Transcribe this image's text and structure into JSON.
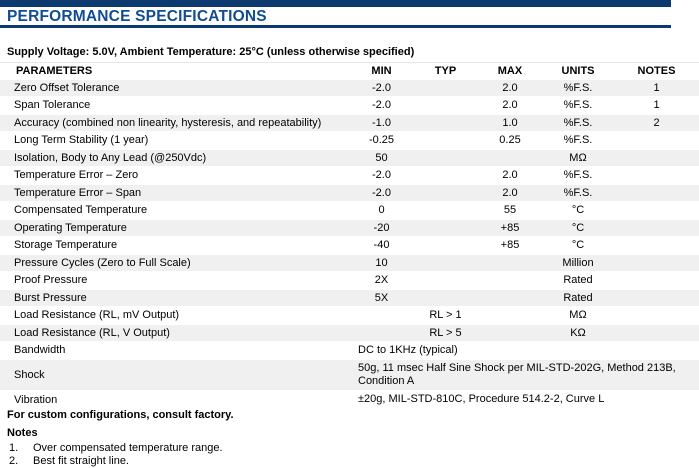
{
  "header": {
    "title": "PERFORMANCE SPECIFICATIONS"
  },
  "subtitle": "Supply Voltage: 5.0V, Ambient Temperature: 25°C (unless otherwise specified)",
  "table": {
    "columns": {
      "parameters": "PARAMETERS",
      "min": "MIN",
      "typ": "TYP",
      "max": "MAX",
      "units": "UNITS",
      "notes": "NOTES"
    },
    "rows": [
      {
        "parameter": "Zero Offset Tolerance",
        "min": "-2.0",
        "typ": "",
        "max": "2.0",
        "units": "%F.S.",
        "notes": "1"
      },
      {
        "parameter": "Span Tolerance",
        "min": "-2.0",
        "typ": "",
        "max": "2.0",
        "units": "%F.S.",
        "notes": "1"
      },
      {
        "parameter": "Accuracy (combined non linearity, hysteresis, and repeatability)",
        "min": "-1.0",
        "typ": "",
        "max": "1.0",
        "units": "%F.S.",
        "notes": "2"
      },
      {
        "parameter": "Long Term Stability (1 year)",
        "min": "-0.25",
        "typ": "",
        "max": "0.25",
        "units": "%F.S.",
        "notes": ""
      },
      {
        "parameter": "Isolation, Body to Any Lead (@250Vdc)",
        "min": "50",
        "typ": "",
        "max": "",
        "units": "MΩ",
        "notes": ""
      },
      {
        "parameter": "Temperature Error – Zero",
        "min": "-2.0",
        "typ": "",
        "max": "2.0",
        "units": "%F.S.",
        "notes": ""
      },
      {
        "parameter": "Temperature Error – Span",
        "min": "-2.0",
        "typ": "",
        "max": "2.0",
        "units": "%F.S.",
        "notes": ""
      },
      {
        "parameter": "Compensated Temperature",
        "min": "0",
        "typ": "",
        "max": "55",
        "units": "°C",
        "notes": ""
      },
      {
        "parameter": "Operating Temperature",
        "min": "-20",
        "typ": "",
        "max": "+85",
        "units": "°C",
        "notes": ""
      },
      {
        "parameter": "Storage Temperature",
        "min": "-40",
        "typ": "",
        "max": "+85",
        "units": "°C",
        "notes": ""
      },
      {
        "parameter": "Pressure Cycles (Zero to Full Scale)",
        "min": "10",
        "typ": "",
        "max": "",
        "units": "Million",
        "notes": ""
      },
      {
        "parameter": "Proof Pressure",
        "min": "2X",
        "typ": "",
        "max": "",
        "units": "Rated",
        "notes": ""
      },
      {
        "parameter": "Burst Pressure",
        "min": "5X",
        "typ": "",
        "max": "",
        "units": "Rated",
        "notes": ""
      },
      {
        "parameter": "Load Resistance (RL, mV Output)",
        "min": "",
        "typ": "RL > 1",
        "max": "",
        "units": "MΩ",
        "notes": ""
      },
      {
        "parameter": "Load Resistance (RL, V Output)",
        "min": "",
        "typ": "RL > 5",
        "max": "",
        "units": "KΩ",
        "notes": ""
      },
      {
        "parameter": "Bandwidth",
        "span": "DC to 1KHz (typical)"
      },
      {
        "parameter": "Shock",
        "span": "50g, 11 msec Half Sine Shock per MIL-STD-202G, Method 213B, Condition A"
      },
      {
        "parameter": "Vibration",
        "span": "±20g, MIL-STD-810C, Procedure 514.2-2, Curve L"
      }
    ]
  },
  "footer": {
    "custom_note": "For custom configurations, consult factory.",
    "notes_title": "Notes",
    "notes": [
      {
        "num": "1.",
        "text": "Over compensated temperature range."
      },
      {
        "num": "2.",
        "text": "Best fit straight line."
      }
    ]
  },
  "colors": {
    "navy_bar": "#0d3a6e",
    "title_blue": "#104c94",
    "row_stripe": "#f0f0f0"
  }
}
